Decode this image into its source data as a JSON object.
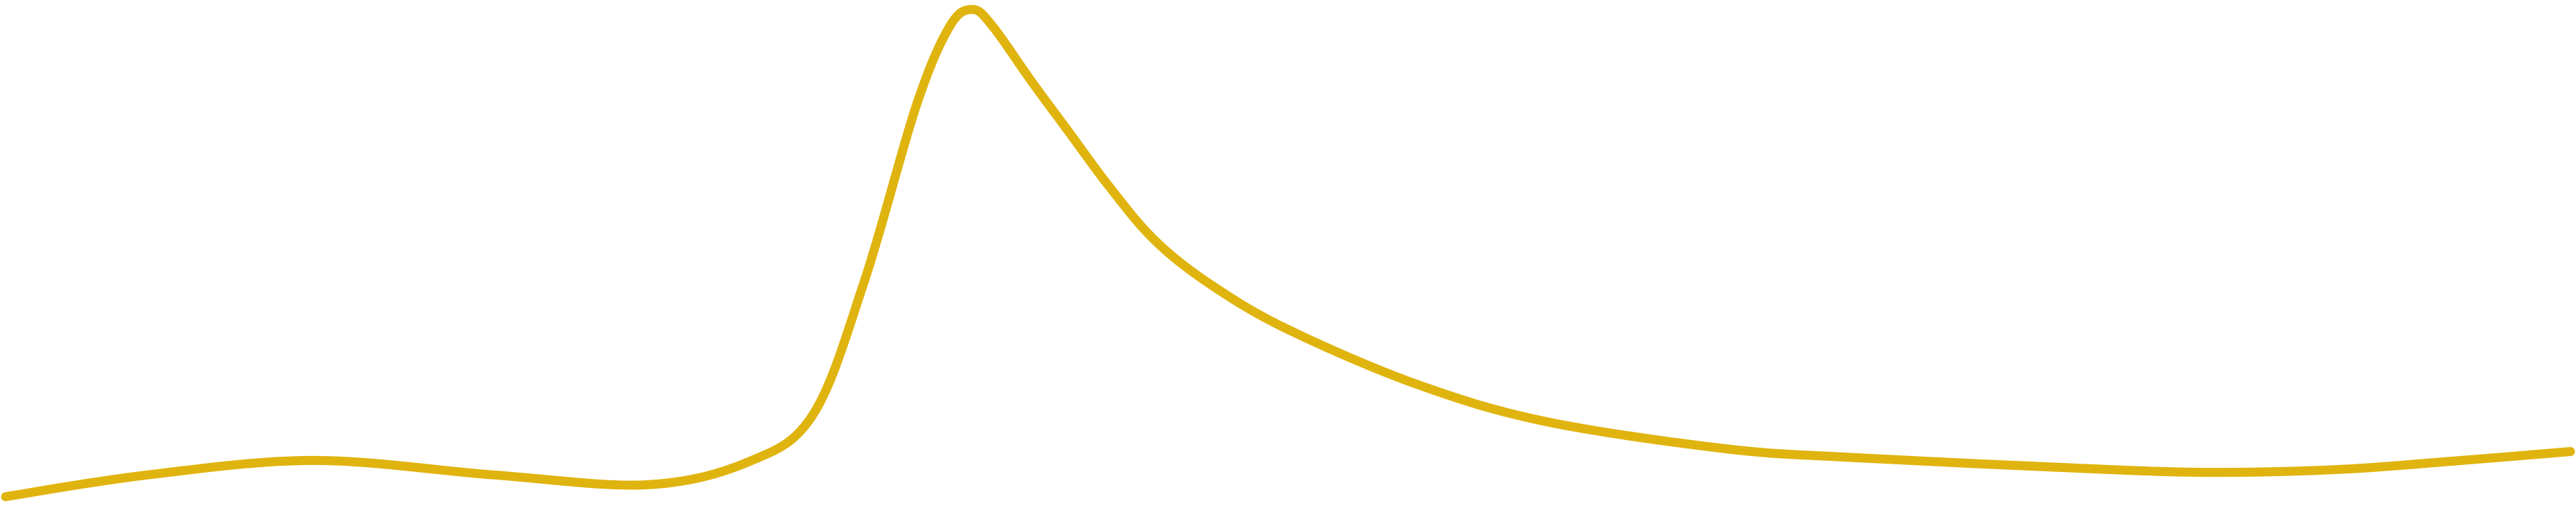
{
  "chart_data": {
    "type": "line",
    "title": "",
    "xlabel": "",
    "ylabel": "",
    "grid": false,
    "legend": "none",
    "xlim": [
      0,
      100
    ],
    "ylim": [
      0,
      100
    ],
    "series": [
      {
        "color": "#E0B40F",
        "points": [
          [
            0.0,
            1.3
          ],
          [
            5.4,
            5.6
          ],
          [
            12.0,
            8.6
          ],
          [
            19.0,
            5.7
          ],
          [
            25.0,
            3.7
          ],
          [
            29.0,
            8.4
          ],
          [
            31.5,
            18.0
          ],
          [
            33.5,
            45.0
          ],
          [
            35.5,
            80.0
          ],
          [
            36.8,
            96.0
          ],
          [
            37.7,
            99.5
          ],
          [
            38.5,
            96.0
          ],
          [
            40.0,
            85.0
          ],
          [
            41.5,
            74.5
          ],
          [
            43.0,
            64.0
          ],
          [
            44.8,
            53.0
          ],
          [
            47.0,
            44.0
          ],
          [
            50.0,
            35.0
          ],
          [
            55.0,
            24.0
          ],
          [
            60.0,
            16.5
          ],
          [
            67.0,
            11.0
          ],
          [
            72.0,
            9.2
          ],
          [
            81.0,
            7.0
          ],
          [
            86.0,
            6.2
          ],
          [
            91.0,
            6.8
          ],
          [
            95.5,
            8.5
          ],
          [
            100.0,
            10.4
          ]
        ]
      }
    ]
  }
}
